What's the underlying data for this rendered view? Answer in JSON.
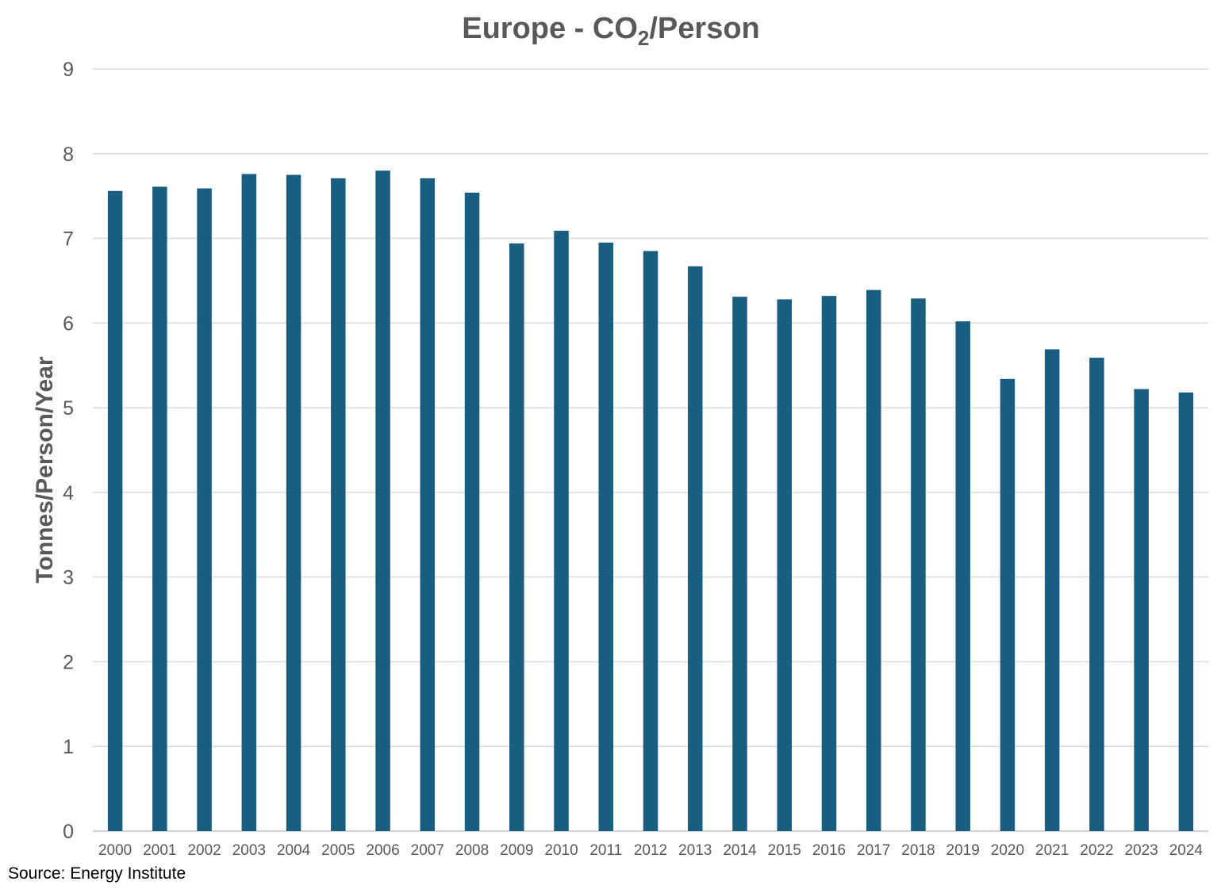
{
  "chart_data": {
    "type": "bar",
    "title": "Europe - CO₂/Person",
    "title_parts": {
      "prefix": "Europe - CO",
      "subscript": "2",
      "suffix": "/Person"
    },
    "xlabel": "",
    "ylabel": "Tonnes/Person/Year",
    "ylim": [
      0,
      9
    ],
    "yticks": [
      0,
      1,
      2,
      3,
      4,
      5,
      6,
      7,
      8,
      9
    ],
    "grid": true,
    "legend": "none",
    "bar_color": "#175E80",
    "categories": [
      "2000",
      "2001",
      "2002",
      "2003",
      "2004",
      "2005",
      "2006",
      "2007",
      "2008",
      "2009",
      "2010",
      "2011",
      "2012",
      "2013",
      "2014",
      "2015",
      "2016",
      "2017",
      "2018",
      "2019",
      "2020",
      "2021",
      "2022",
      "2023",
      "2024"
    ],
    "series": [
      {
        "values": [
          7.56,
          7.61,
          7.59,
          7.76,
          7.75,
          7.71,
          7.8,
          7.71,
          7.54,
          6.94,
          7.09,
          6.95,
          6.85,
          6.67,
          6.31,
          6.28,
          6.32,
          6.39,
          6.29,
          6.02,
          5.34,
          5.69,
          5.59,
          5.22,
          5.18
        ]
      }
    ]
  },
  "source_note": "Source: Energy Institute"
}
